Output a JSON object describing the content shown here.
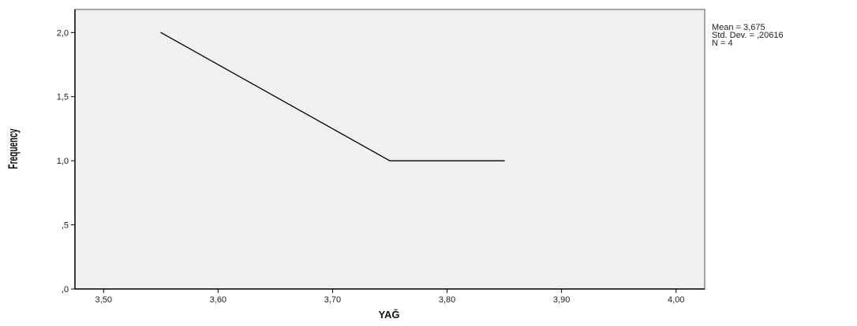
{
  "chart_data": {
    "type": "line",
    "title": "",
    "xlabel": "YAĞ",
    "ylabel": "Frequency",
    "x": [
      3.55,
      3.75,
      3.85
    ],
    "values": [
      2.0,
      1.0,
      1.0
    ],
    "xlim": [
      3.475,
      4.025
    ],
    "ylim": [
      0,
      2.18
    ],
    "x_ticks": [
      {
        "value": 3.5,
        "label": "3,50"
      },
      {
        "value": 3.6,
        "label": "3,60"
      },
      {
        "value": 3.7,
        "label": "3,70"
      },
      {
        "value": 3.8,
        "label": "3,80"
      },
      {
        "value": 3.9,
        "label": "3,90"
      },
      {
        "value": 4.0,
        "label": "4,00"
      }
    ],
    "y_ticks": [
      {
        "value": 0,
        "label": ",0"
      },
      {
        "value": 0.5,
        "label": ",5"
      },
      {
        "value": 1.0,
        "label": "1,0"
      },
      {
        "value": 1.5,
        "label": "1,5"
      },
      {
        "value": 2.0,
        "label": "2,0"
      }
    ],
    "grid": false,
    "legend": "none",
    "annotations": [
      "Mean = 3,675",
      "Std. Dev. = ,20616",
      "N = 4"
    ],
    "colors": {
      "plot_background": "#f0f0f0",
      "line": "#000000",
      "axis": "#000000"
    }
  }
}
